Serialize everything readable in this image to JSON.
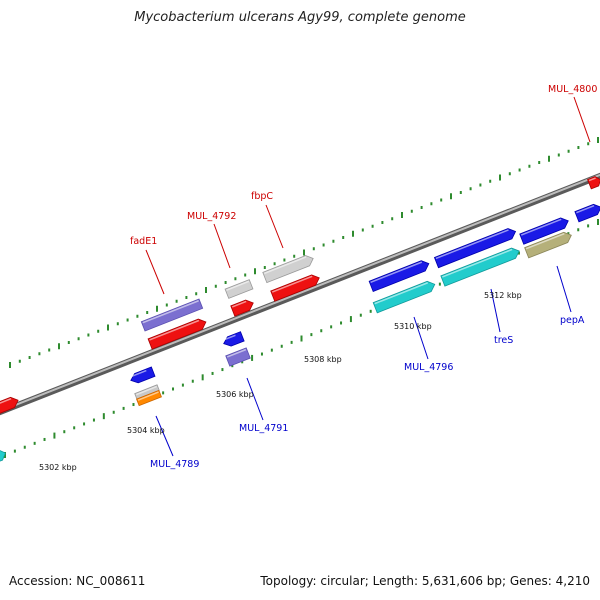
{
  "title": "Mycobacterium ulcerans Agy99, complete genome",
  "footer": {
    "accession": "Accession: NC_008611",
    "summary": "Topology: circular; Length: 5,631,606 bp; Genes: 4,210"
  },
  "colors": {
    "backbone": "#8c8c8c",
    "ticks": "#2e8b2e",
    "label_top": "#cc0000",
    "label_bottom": "#0000cc"
  },
  "scale_labels": [
    "5302 kbp",
    "5304 kbp",
    "5306 kbp",
    "5308 kbp",
    "5310 kbp",
    "5312 kbp"
  ],
  "gene_labels_top": [
    "fadE1",
    "MUL_4792",
    "fbpC",
    "MUL_4800"
  ],
  "gene_labels_bottom": [
    "MUL_4789",
    "MUL_4791",
    "MUL_4796",
    "treS",
    "pepA"
  ]
}
